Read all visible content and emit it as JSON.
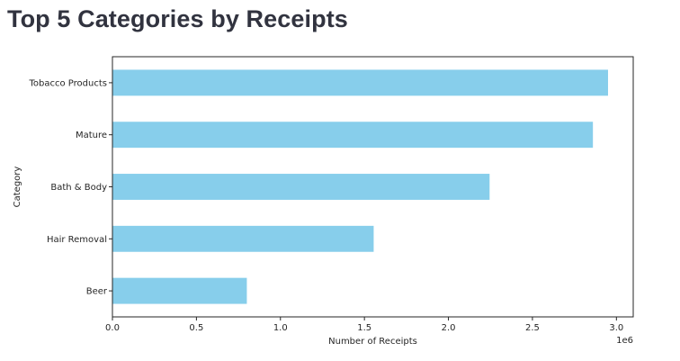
{
  "page": {
    "title": "Top 5 Categories by Receipts"
  },
  "chart_data": {
    "type": "bar",
    "orientation": "horizontal",
    "title": "",
    "xlabel": "Number of Receipts",
    "ylabel": "Category",
    "x_offset_text": "1e6",
    "categories": [
      "Tobacco Products",
      "Mature",
      "Bath & Body",
      "Hair Removal",
      "Beer"
    ],
    "values": [
      2950000,
      2860000,
      2245000,
      1555000,
      800000
    ],
    "xlim": [
      0,
      3100000
    ],
    "x_ticks": [
      0,
      500000,
      1000000,
      1500000,
      2000000,
      2500000,
      3000000
    ],
    "x_tick_labels": [
      "0.0",
      "0.5",
      "1.0",
      "1.5",
      "2.0",
      "2.5",
      "3.0"
    ],
    "grid": false,
    "bar_color": "#87ceeb",
    "axis_color": "#262626"
  }
}
